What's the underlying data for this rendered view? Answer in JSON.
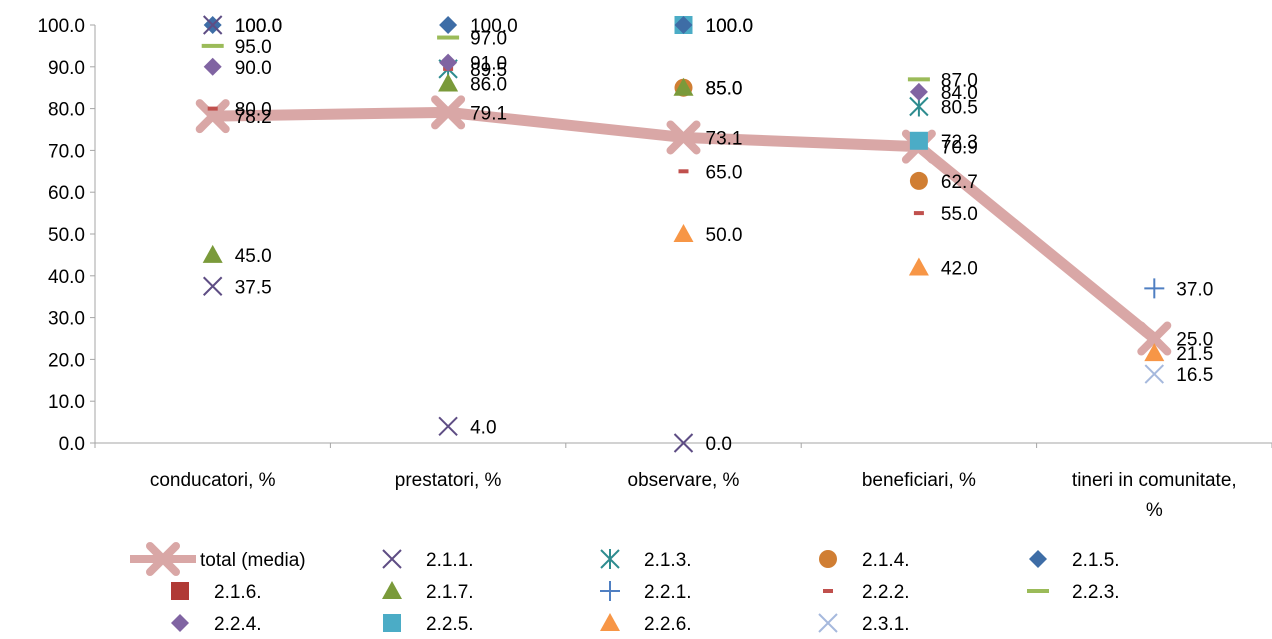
{
  "chart_data": {
    "type": "line",
    "categories": [
      "conducatori, %",
      "prestatori,   %",
      "observare,    %",
      "beneficiari,  %",
      "tineri in comunitate, %"
    ],
    "ylim": [
      0,
      100
    ],
    "yticks": [
      "0.0",
      "10.0",
      "20.0",
      "30.0",
      "40.0",
      "50.0",
      "60.0",
      "70.0",
      "80.0",
      "90.0",
      "100.0"
    ],
    "series": [
      {
        "name": "total (media)",
        "marker": "bigx",
        "color": "#D9A7A6",
        "line": true,
        "values": [
          78.2,
          79.1,
          73.1,
          70.9,
          25.0
        ],
        "labels": [
          "78.2",
          "79.1",
          "73.1",
          "70.9",
          "25.0"
        ]
      },
      {
        "name": "2.1.1.",
        "marker": "x",
        "color": "#5E4D84",
        "values": [
          37.5,
          4.0,
          0.0,
          null,
          null
        ],
        "labels": [
          "37.5",
          "4.0",
          "0.0",
          "",
          ""
        ]
      },
      {
        "name": "2.1.3.",
        "marker": "asterisk",
        "color": "#2E8C8F",
        "values": [
          null,
          89.5,
          null,
          80.5,
          null
        ],
        "labels": [
          "",
          "89.5",
          "",
          "80.5",
          ""
        ]
      },
      {
        "name": "2.1.4.",
        "marker": "circle",
        "color": "#D07E33",
        "values": [
          null,
          null,
          85.0,
          62.7,
          null
        ],
        "labels": [
          "",
          "",
          "85.0",
          "62.7",
          ""
        ]
      },
      {
        "name": "2.1.5.",
        "marker": "diamond",
        "color": "#3E6DA6",
        "values": [
          100.0,
          100.0,
          null,
          null,
          null
        ],
        "labels": [
          "100.0",
          "100.0",
          "",
          "",
          ""
        ]
      },
      {
        "name": "2.1.6.",
        "marker": "square",
        "color": "#B03A35",
        "values": [
          null,
          null,
          null,
          null,
          null
        ],
        "labels": [
          "",
          "",
          "",
          "",
          ""
        ]
      },
      {
        "name": "2.1.7.",
        "marker": "triangle",
        "color": "#7A9A3A",
        "values": [
          45.0,
          86.0,
          85.0,
          null,
          null
        ],
        "labels": [
          "45.0",
          "86.0",
          "85.0",
          "",
          ""
        ]
      },
      {
        "name": "2.2.1.",
        "marker": "plus",
        "color": "#4F7FC2",
        "values": [
          null,
          null,
          null,
          null,
          37.0
        ],
        "labels": [
          "",
          "",
          "",
          "",
          "37.0"
        ]
      },
      {
        "name": "2.2.2.",
        "marker": "dash",
        "color": "#C0504D",
        "values": [
          80.0,
          89.5,
          65.0,
          55.0,
          null
        ],
        "labels": [
          "80.0",
          "",
          "65.0",
          "55.0",
          ""
        ]
      },
      {
        "name": "2.2.3.",
        "marker": "dash",
        "color": "#9BBB59",
        "values": [
          95.0,
          97.0,
          null,
          87.0,
          null
        ],
        "labels": [
          "95.0",
          "97.0",
          "",
          "87.0",
          ""
        ]
      },
      {
        "name": "2.2.4.",
        "marker": "diamond",
        "color": "#8064A2",
        "values": [
          90.0,
          91.0,
          null,
          84.0,
          null
        ],
        "labels": [
          "90.0",
          "91.0",
          "",
          "84.0",
          ""
        ]
      },
      {
        "name": "2.2.5.",
        "marker": "square",
        "color": "#4BACC6",
        "values": [
          null,
          null,
          100.0,
          72.3,
          null
        ],
        "labels": [
          "",
          "",
          "100.0",
          "72.3",
          ""
        ]
      },
      {
        "name": "2.2.6.",
        "marker": "triangle",
        "color": "#F79646",
        "values": [
          null,
          null,
          50.0,
          42.0,
          21.5
        ],
        "labels": [
          "",
          "",
          "50.0",
          "42.0",
          "21.5"
        ]
      },
      {
        "name": "2.3.1.",
        "marker": "x",
        "color": "#A6B9DD",
        "values": [
          null,
          null,
          null,
          null,
          16.5
        ],
        "labels": [
          "",
          "",
          "",
          "",
          "16.5"
        ]
      }
    ],
    "extra_points": [
      {
        "series": "2.1.1.",
        "category": 0,
        "value": 100.0,
        "label": "100.0"
      },
      {
        "series": "2.1.5.",
        "category": 2,
        "value": 100.0,
        "label": "100.0"
      }
    ],
    "legend_position": "bottom",
    "grid": false
  }
}
